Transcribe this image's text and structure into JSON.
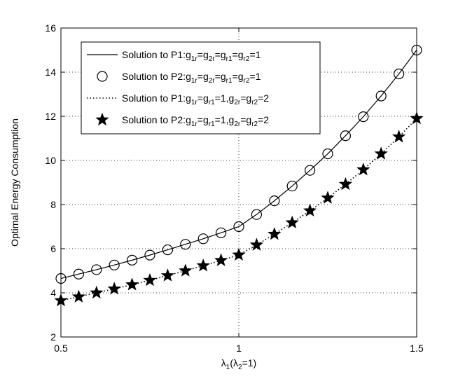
{
  "chart_data": {
    "type": "line",
    "xlabel": "λ1(λ2=1)",
    "xlabel_parts": {
      "main": "λ",
      "sub1": "1",
      "open": "(λ",
      "sub2": "2",
      "close": "=1)"
    },
    "ylabel": "Optimal Energy Consumption",
    "xlim": [
      0.5,
      1.5
    ],
    "ylim": [
      2,
      16
    ],
    "xticks": [
      0.5,
      1,
      1.5
    ],
    "xtick_labels": [
      "0.5",
      "1",
      "1.5"
    ],
    "yticks": [
      2,
      4,
      6,
      8,
      10,
      12,
      14,
      16
    ],
    "ytick_labels": [
      "2",
      "4",
      "6",
      "8",
      "10",
      "12",
      "14",
      "16"
    ],
    "grid": true,
    "legend_position": "top-left",
    "x": [
      0.5,
      0.55,
      0.6,
      0.65,
      0.7,
      0.75,
      0.8,
      0.85,
      0.9,
      0.95,
      1.0,
      1.05,
      1.1,
      1.15,
      1.2,
      1.25,
      1.3,
      1.35,
      1.4,
      1.45,
      1.5
    ],
    "series": [
      {
        "name": "Solution to P1:g1r=g2r=gr1=gr2=1",
        "label_parts": {
          "prefix": "Solution to P1:",
          "terms": [
            [
              "g",
              "1r",
              "="
            ],
            [
              "g",
              "2r",
              "="
            ],
            [
              "g",
              "r1",
              "="
            ],
            [
              "g",
              "r2",
              "=1"
            ]
          ]
        },
        "style": "solid",
        "marker": "none",
        "values": [
          4.65,
          4.85,
          5.05,
          5.26,
          5.48,
          5.71,
          5.95,
          6.2,
          6.45,
          6.72,
          7.0,
          7.55,
          8.17,
          8.84,
          9.55,
          10.3,
          11.12,
          11.98,
          12.92,
          13.92,
          15.0
        ]
      },
      {
        "name": "Solution to P2:g1r=g2r=gr1=gr2=1",
        "label_parts": {
          "prefix": "Solution to P2:",
          "terms": [
            [
              "g",
              "1r",
              "="
            ],
            [
              "g",
              "2r",
              "="
            ],
            [
              "g",
              "r1",
              "="
            ],
            [
              "g",
              "r2",
              "=1"
            ]
          ]
        },
        "style": "none",
        "marker": "circle",
        "values": [
          4.65,
          4.85,
          5.05,
          5.26,
          5.48,
          5.71,
          5.95,
          6.2,
          6.45,
          6.72,
          7.0,
          7.55,
          8.17,
          8.84,
          9.55,
          10.3,
          11.12,
          11.98,
          12.92,
          13.92,
          15.0
        ]
      },
      {
        "name": "Solution to P1:g1r=gr1=1,g2r=gr2=2",
        "label_parts": {
          "prefix": "Solution to P1:",
          "terms": [
            [
              "g",
              "1r",
              "="
            ],
            [
              "g",
              "r1",
              "=1,"
            ],
            [
              "g",
              "2r",
              "="
            ],
            [
              "g",
              "r2",
              "=2"
            ]
          ]
        },
        "style": "dotted",
        "marker": "none",
        "values": [
          3.65,
          3.82,
          4.0,
          4.18,
          4.37,
          4.57,
          4.78,
          5.0,
          5.23,
          5.47,
          5.72,
          6.17,
          6.66,
          7.18,
          7.72,
          8.3,
          8.92,
          9.58,
          10.3,
          11.07,
          11.9
        ]
      },
      {
        "name": "Solution to P2:g1r=gr1=1,g2r=gr2=2",
        "label_parts": {
          "prefix": "Solution to P2:",
          "terms": [
            [
              "g",
              "1r",
              "="
            ],
            [
              "g",
              "r1",
              "=1,"
            ],
            [
              "g",
              "2r",
              "="
            ],
            [
              "g",
              "r2",
              "=2"
            ]
          ]
        },
        "style": "none",
        "marker": "star",
        "values": [
          3.65,
          3.82,
          4.0,
          4.18,
          4.37,
          4.57,
          4.78,
          5.0,
          5.23,
          5.47,
          5.72,
          6.17,
          6.66,
          7.18,
          7.72,
          8.3,
          8.92,
          9.58,
          10.3,
          11.07,
          11.9
        ]
      }
    ]
  }
}
